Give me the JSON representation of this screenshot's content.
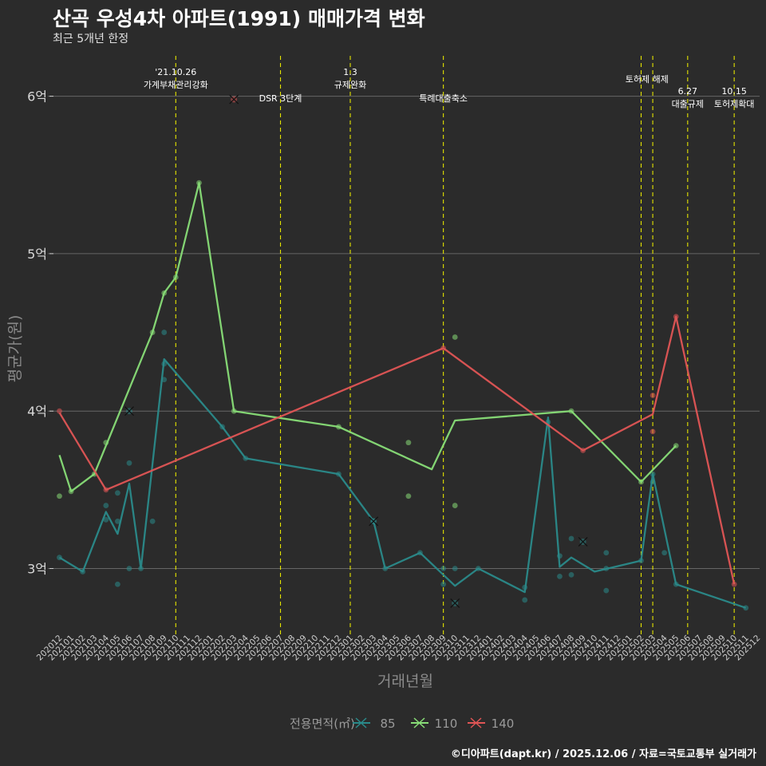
{
  "header": {
    "title": "산곡 우성4차 아파트(1991) 매매가격 변화",
    "subtitle": "최근 5개년 한정"
  },
  "caption": "©디아파트(dapt.kr) / 2025.12.06 / 자료=국토교통부 실거래가",
  "colors": {
    "background": "#2b2b2b",
    "grid": "#666666",
    "event_line": "#e5e500",
    "s85": "#2a8a8a",
    "s110": "#88dd77",
    "s140": "#e05555"
  },
  "chart_data": {
    "type": "line",
    "title": "산곡 우성4차 아파트(1991) 매매가격 변화",
    "xlabel": "거래년월",
    "ylabel": "평균가(원)",
    "ylim": [
      2.6,
      6.25
    ],
    "yticks": [
      {
        "value": 3,
        "label": "3억"
      },
      {
        "value": 4,
        "label": "4억"
      },
      {
        "value": 5,
        "label": "5억"
      },
      {
        "value": 6,
        "label": "6억"
      }
    ],
    "months": [
      "202012",
      "202101",
      "202102",
      "202103",
      "202104",
      "202105",
      "202106",
      "202107",
      "202108",
      "202109",
      "202110",
      "202111",
      "202112",
      "202201",
      "202202",
      "202203",
      "202204",
      "202205",
      "202206",
      "202207",
      "202208",
      "202209",
      "202210",
      "202211",
      "202212",
      "202301",
      "202302",
      "202303",
      "202304",
      "202305",
      "202306",
      "202307",
      "202308",
      "202309",
      "202310",
      "202311",
      "202312",
      "202401",
      "202402",
      "202403",
      "202404",
      "202405",
      "202406",
      "202407",
      "202408",
      "202409",
      "202410",
      "202411",
      "202412",
      "202501",
      "202502",
      "202503",
      "202504",
      "202505",
      "202506",
      "202507",
      "202508",
      "202509",
      "202510",
      "202511",
      "202512"
    ],
    "legend": {
      "title": "전용면적(㎡)",
      "position": "bottom"
    },
    "events": [
      {
        "month": "202110",
        "labels": [
          "'21.10.26",
          "가계부채관리강화"
        ],
        "row": 0
      },
      {
        "month": "202207",
        "labels": [
          "DSR 3단계"
        ],
        "row": 2
      },
      {
        "month": "202301",
        "labels": [
          "1.3",
          "규제완화"
        ],
        "row": 0
      },
      {
        "month": "202309",
        "labels": [
          "특례대출축소"
        ],
        "row": 2
      },
      {
        "month": "202502",
        "labels": [
          "토허제 해제"
        ],
        "row": 1,
        "anchor": "202502.5"
      },
      {
        "month": "202503",
        "labels": [],
        "row": 1
      },
      {
        "month": "202506",
        "labels": [
          "6.27",
          "대출규제"
        ],
        "row": 3
      },
      {
        "month": "202510",
        "labels": [
          "10.15",
          "토허제확대"
        ],
        "row": 3
      }
    ],
    "series": [
      {
        "name": "85",
        "color": "#2a8a8a",
        "line": [
          [
            "202012",
            3.07
          ],
          [
            "202102",
            2.98
          ],
          [
            "202104",
            3.36
          ],
          [
            "202105",
            3.22
          ],
          [
            "202106",
            3.54
          ],
          [
            "202107",
            3.0
          ],
          [
            "202109",
            4.33
          ],
          [
            "202202",
            3.9
          ],
          [
            "202204",
            3.7
          ],
          [
            "202212",
            3.6
          ],
          [
            "202303",
            3.3
          ],
          [
            "202304",
            3.0
          ],
          [
            "202307",
            3.1
          ],
          [
            "202310",
            2.89
          ],
          [
            "202312",
            3.0
          ],
          [
            "202404",
            2.85
          ],
          [
            "202406",
            3.96
          ],
          [
            "202407",
            3.01
          ],
          [
            "202408",
            3.07
          ],
          [
            "202410",
            2.98
          ],
          [
            "202502",
            3.05
          ],
          [
            "202503",
            3.6
          ],
          [
            "202505",
            2.9
          ],
          [
            "202511",
            2.75
          ]
        ],
        "points": [
          [
            "202012",
            3.07
          ],
          [
            "202102",
            2.98
          ],
          [
            "202104",
            3.4
          ],
          [
            "202104",
            3.31
          ],
          [
            "202105",
            3.48
          ],
          [
            "202105",
            3.3
          ],
          [
            "202105",
            2.9
          ],
          [
            "202106",
            3.67
          ],
          [
            "202106",
            3.0
          ],
          [
            "202107",
            3.0
          ],
          [
            "202108",
            3.3
          ],
          [
            "202109",
            4.5
          ],
          [
            "202109",
            4.3
          ],
          [
            "202109",
            4.2
          ],
          [
            "202202",
            3.9
          ],
          [
            "202204",
            3.7
          ],
          [
            "202212",
            3.6
          ],
          [
            "202303",
            3.3
          ],
          [
            "202304",
            3.0
          ],
          [
            "202307",
            3.1
          ],
          [
            "202309",
            3.0
          ],
          [
            "202309",
            2.9
          ],
          [
            "202310",
            3.0
          ],
          [
            "202312",
            3.0
          ],
          [
            "202404",
            2.88
          ],
          [
            "202404",
            2.8
          ],
          [
            "202406",
            3.93
          ],
          [
            "202407",
            3.08
          ],
          [
            "202407",
            2.95
          ],
          [
            "202408",
            3.19
          ],
          [
            "202408",
            2.96
          ],
          [
            "202411",
            3.1
          ],
          [
            "202411",
            3.0
          ],
          [
            "202411",
            2.86
          ],
          [
            "202502",
            3.05
          ],
          [
            "202503",
            3.6
          ],
          [
            "202503",
            3.55
          ],
          [
            "202504",
            3.1
          ],
          [
            "202505",
            2.9
          ],
          [
            "202511",
            2.75
          ]
        ],
        "crosses": [
          [
            "202106",
            4.0
          ],
          [
            "202303",
            3.3
          ],
          [
            "202310",
            2.78
          ],
          [
            "202409",
            3.17
          ]
        ]
      },
      {
        "name": "110",
        "color": "#88dd77",
        "line": [
          [
            "202012",
            3.72
          ],
          [
            "202101",
            3.49
          ],
          [
            "202103",
            3.6
          ],
          [
            "202108",
            4.5
          ],
          [
            "202109",
            4.75
          ],
          [
            "202110",
            4.85
          ],
          [
            "202112",
            5.45
          ],
          [
            "202203",
            4.0
          ],
          [
            "202212",
            3.9
          ],
          [
            "202308",
            3.63
          ],
          [
            "202310",
            3.94
          ],
          [
            "202408",
            4.0
          ],
          [
            "202502",
            3.55
          ],
          [
            "202505",
            3.78
          ]
        ],
        "points": [
          [
            "202012",
            3.46
          ],
          [
            "202101",
            3.49
          ],
          [
            "202103",
            3.6
          ],
          [
            "202104",
            3.8
          ],
          [
            "202108",
            4.5
          ],
          [
            "202109",
            4.75
          ],
          [
            "202110",
            4.85
          ],
          [
            "202112",
            5.45
          ],
          [
            "202203",
            4.0
          ],
          [
            "202212",
            3.9
          ],
          [
            "202306",
            3.8
          ],
          [
            "202306",
            3.46
          ],
          [
            "202310",
            4.47
          ],
          [
            "202310",
            3.4
          ],
          [
            "202408",
            4.0
          ],
          [
            "202502",
            3.55
          ],
          [
            "202505",
            3.78
          ]
        ],
        "crosses": []
      },
      {
        "name": "140",
        "color": "#e05555",
        "line": [
          [
            "202012",
            3.99
          ],
          [
            "202104",
            3.5
          ],
          [
            "202309",
            4.4
          ],
          [
            "202409",
            3.75
          ],
          [
            "202503",
            3.98
          ],
          [
            "202505",
            4.6
          ],
          [
            "202510",
            2.9
          ]
        ],
        "points": [
          [
            "202012",
            4.0
          ],
          [
            "202104",
            3.5
          ],
          [
            "202309",
            4.4
          ],
          [
            "202409",
            3.75
          ],
          [
            "202503",
            4.1
          ],
          [
            "202503",
            3.87
          ],
          [
            "202505",
            4.6
          ],
          [
            "202510",
            2.9
          ]
        ],
        "crosses": [
          [
            "202203",
            5.98
          ]
        ]
      }
    ]
  }
}
